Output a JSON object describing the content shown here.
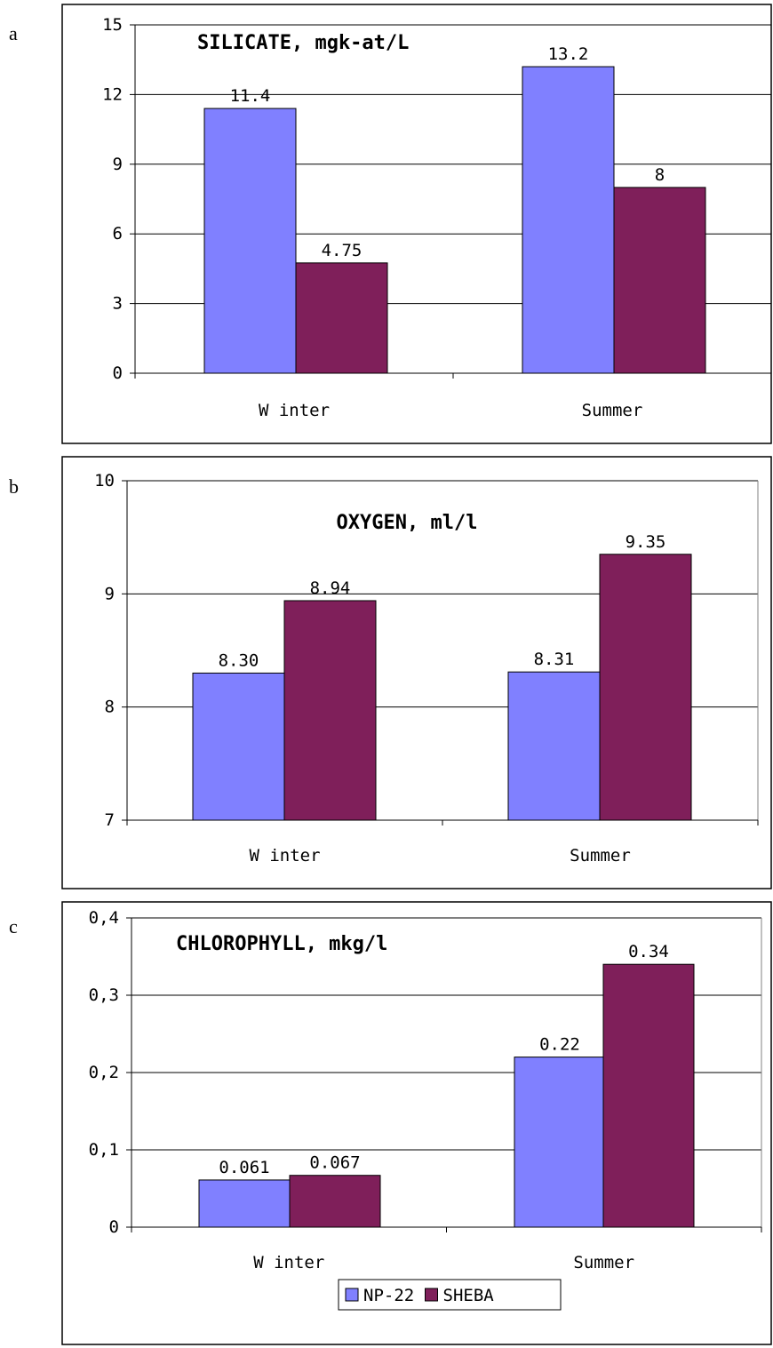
{
  "chart_data": [
    {
      "panel": "a",
      "type": "bar",
      "title": "SILICATE, mgk-at/L",
      "categories": [
        "W inter",
        "Summer"
      ],
      "series": [
        {
          "name": "NP-22",
          "values": [
            11.4,
            13.2
          ],
          "labels": [
            "11.4",
            "13.2"
          ]
        },
        {
          "name": "SHEBA",
          "values": [
            4.75,
            8
          ],
          "labels": [
            "4.75",
            "8"
          ]
        }
      ],
      "ylim": [
        0,
        15
      ],
      "yticks": [
        0,
        3,
        6,
        9,
        12,
        15
      ],
      "ytick_labels": [
        "0",
        "3",
        "6",
        "9",
        "12",
        "15"
      ],
      "grid": true,
      "legend": "none"
    },
    {
      "panel": "b",
      "type": "bar",
      "title": "OXYGEN, ml/l",
      "categories": [
        "W inter",
        "Summer"
      ],
      "series": [
        {
          "name": "NP-22",
          "values": [
            8.3,
            8.31
          ],
          "labels": [
            "8.30",
            "8.31"
          ]
        },
        {
          "name": "SHEBA",
          "values": [
            8.94,
            9.35
          ],
          "labels": [
            "8.94",
            "9.35"
          ]
        }
      ],
      "ylim": [
        7,
        10
      ],
      "yticks": [
        7,
        8,
        9,
        10
      ],
      "ytick_labels": [
        "7",
        "8",
        "9",
        "10"
      ],
      "grid": true,
      "legend": "none"
    },
    {
      "panel": "c",
      "type": "bar",
      "title": "CHLOROPHYLL, mkg/l",
      "categories": [
        "W inter",
        "Summer"
      ],
      "series": [
        {
          "name": "NP-22",
          "values": [
            0.061,
            0.22
          ],
          "labels": [
            "0.061",
            "0.22"
          ]
        },
        {
          "name": "SHEBA",
          "values": [
            0.067,
            0.34
          ],
          "labels": [
            "0.067",
            "0.34"
          ]
        }
      ],
      "ylim": [
        0,
        0.4
      ],
      "yticks": [
        0,
        0.1,
        0.2,
        0.3,
        0.4
      ],
      "ytick_labels": [
        "0",
        "0,1",
        "0,2",
        "0,3",
        "0,4"
      ],
      "grid": true,
      "legend": "bottom-center"
    }
  ],
  "colors": {
    "series_1": "#8080ff",
    "series_2": "#7f1f5a",
    "grid": "#000000",
    "frame": "#000000"
  }
}
